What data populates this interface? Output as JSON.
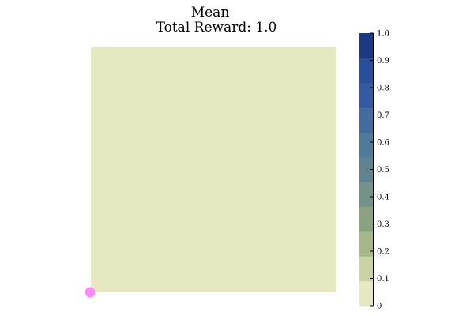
{
  "chart_data": {
    "type": "heatmap",
    "title": "Mean",
    "subtitle": "Total Reward: 1.0",
    "cell_value": 0.0,
    "agent_marker": {
      "x": 0,
      "y": 0,
      "color": "#ff88ff"
    },
    "colorbar": {
      "min": 0,
      "max": 1.0,
      "ticks": [
        "0",
        "0.1",
        "0.2",
        "0.3",
        "0.4",
        "0.5",
        "0.6",
        "0.7",
        "0.8",
        "0.9",
        "1.0"
      ],
      "colors": [
        "#e5e8c1",
        "#c9d4a2",
        "#a6b88a",
        "#8ba280",
        "#74918a",
        "#5f8390",
        "#507a99",
        "#426ba0",
        "#335ca0",
        "#284f99",
        "#1c3a82"
      ]
    },
    "grid": false
  }
}
